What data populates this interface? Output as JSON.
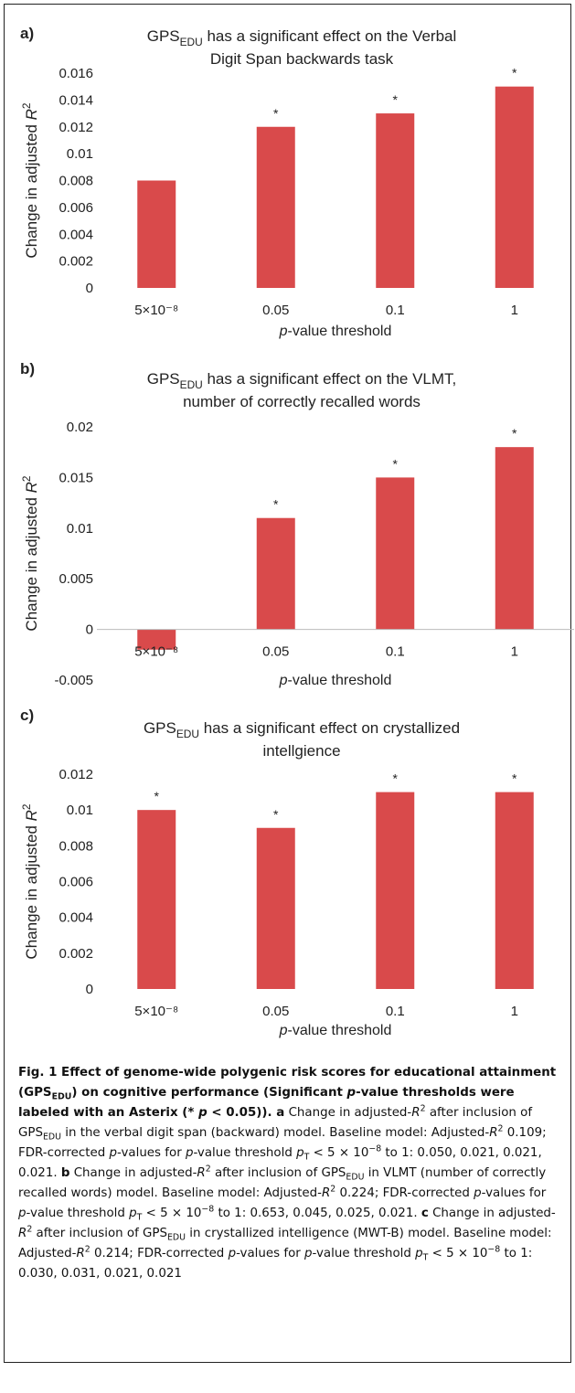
{
  "chart_data": [
    {
      "type": "bar",
      "panel": "a)",
      "title": [
        [
          {
            "text": "GPS"
          },
          {
            "text": "EDU",
            "style": "sub"
          },
          {
            "text": " has a significant effect on the Verbal"
          }
        ],
        [
          {
            "text": "Digit Span backwards task"
          }
        ]
      ],
      "ylabel": [
        {
          "text": "Change in adjusted "
        },
        {
          "text": "R",
          "style": "i"
        },
        {
          "text": "2",
          "style": "sup"
        }
      ],
      "xlabel": [
        {
          "text": "p",
          "style": "i"
        },
        {
          "text": "-value threshold"
        }
      ],
      "categories": [
        "5×10⁻⁸",
        "0.05",
        "0.1",
        "1"
      ],
      "values": [
        0.008,
        0.012,
        0.013,
        0.015
      ],
      "annotations": [
        null,
        "*",
        "*",
        "*"
      ],
      "color": "#d94a4b",
      "ylim": [
        0,
        0.016
      ],
      "yticks": [
        0,
        0.002,
        0.004,
        0.006,
        0.008,
        0.01,
        0.012,
        0.014,
        0.016
      ]
    },
    {
      "type": "bar",
      "panel": "b)",
      "title": [
        [
          {
            "text": "GPS"
          },
          {
            "text": "EDU",
            "style": "sub"
          },
          {
            "text": " has a significant effect on the VLMT,"
          }
        ],
        [
          {
            "text": "number of correctly recalled words"
          }
        ]
      ],
      "ylabel": [
        {
          "text": "Change in adjusted "
        },
        {
          "text": "R",
          "style": "i"
        },
        {
          "text": "2",
          "style": "sup"
        }
      ],
      "xlabel": [
        {
          "text": "p",
          "style": "i"
        },
        {
          "text": "-value threshold"
        }
      ],
      "categories": [
        "5×10⁻⁸",
        "0.05",
        "0.1",
        "1"
      ],
      "values": [
        -0.002,
        0.011,
        0.015,
        0.018
      ],
      "annotations": [
        null,
        "*",
        "*",
        "*"
      ],
      "color": "#d94a4b",
      "zero_line": true,
      "ylim": [
        -0.005,
        0.02
      ],
      "yticks": [
        -0.005,
        0,
        0.005,
        0.01,
        0.015,
        0.02
      ]
    },
    {
      "type": "bar",
      "panel": "c)",
      "title": [
        [
          {
            "text": "GPS"
          },
          {
            "text": "EDU",
            "style": "sub"
          },
          {
            "text": " has a significant effect on crystallized"
          }
        ],
        [
          {
            "text": "intellgience"
          }
        ]
      ],
      "ylabel": [
        {
          "text": "Change in adjusted "
        },
        {
          "text": "R",
          "style": "i"
        },
        {
          "text": "2",
          "style": "sup"
        }
      ],
      "xlabel": [
        {
          "text": "p",
          "style": "i"
        },
        {
          "text": "-value threshold"
        }
      ],
      "categories": [
        "5×10⁻⁸",
        "0.05",
        "0.1",
        "1"
      ],
      "values": [
        0.01,
        0.009,
        0.011,
        0.011
      ],
      "annotations": [
        "*",
        "*",
        "*",
        "*"
      ],
      "color": "#d94a4b",
      "ylim": [
        0,
        0.012
      ],
      "yticks": [
        0,
        0.002,
        0.004,
        0.006,
        0.008,
        0.01,
        0.012
      ]
    }
  ],
  "caption": [
    {
      "text": "Fig. 1 Effect of genome-wide polygenic risk scores for educational attainment (GPS",
      "style": "b"
    },
    {
      "text": "EDU",
      "style": "bsub"
    },
    {
      "text": ") on cognitive performance (Significant ",
      "style": "b"
    },
    {
      "text": "p",
      "style": "bi"
    },
    {
      "text": "-value thresholds were labeled with an Asterix (* ",
      "style": "b"
    },
    {
      "text": "p",
      "style": "bi"
    },
    {
      "text": " < 0.05)). ",
      "style": "b"
    },
    {
      "text": "a",
      "style": "b"
    },
    {
      "text": " Change in adjusted-"
    },
    {
      "text": "R",
      "style": "i"
    },
    {
      "text": "2",
      "style": "sup"
    },
    {
      "text": " after inclusion of GPS"
    },
    {
      "text": "EDU",
      "style": "sub"
    },
    {
      "text": " in the verbal digit span (backward) model. Baseline model: Adjusted-"
    },
    {
      "text": "R",
      "style": "i"
    },
    {
      "text": "2",
      "style": "sup"
    },
    {
      "text": " 0.109; FDR-corrected "
    },
    {
      "text": "p",
      "style": "i"
    },
    {
      "text": "-values for "
    },
    {
      "text": "p",
      "style": "i"
    },
    {
      "text": "-value threshold "
    },
    {
      "text": "p",
      "style": "i"
    },
    {
      "text": "T",
      "style": "sub"
    },
    {
      "text": " < 5 × 10"
    },
    {
      "text": "−8",
      "style": "sup"
    },
    {
      "text": " to 1: 0.050, 0.021, 0.021, 0.021. "
    },
    {
      "text": "b",
      "style": "b"
    },
    {
      "text": " Change in adjusted-"
    },
    {
      "text": "R",
      "style": "i"
    },
    {
      "text": "2",
      "style": "sup"
    },
    {
      "text": " after inclusion of GPS"
    },
    {
      "text": "EDU",
      "style": "sub"
    },
    {
      "text": " in VLMT (number of correctly recalled words) model. Baseline model: Adjusted-"
    },
    {
      "text": "R",
      "style": "i"
    },
    {
      "text": "2",
      "style": "sup"
    },
    {
      "text": " 0.224; FDR-corrected "
    },
    {
      "text": "p",
      "style": "i"
    },
    {
      "text": "-values for "
    },
    {
      "text": "p",
      "style": "i"
    },
    {
      "text": "-value threshold "
    },
    {
      "text": "p",
      "style": "i"
    },
    {
      "text": "T",
      "style": "sub"
    },
    {
      "text": " < 5 × 10"
    },
    {
      "text": "−8",
      "style": "sup"
    },
    {
      "text": " to 1: 0.653, 0.045, 0.025, 0.021. "
    },
    {
      "text": "c",
      "style": "b"
    },
    {
      "text": " Change in adjusted-"
    },
    {
      "text": "R",
      "style": "i"
    },
    {
      "text": "2",
      "style": "sup"
    },
    {
      "text": " after inclusion of GPS"
    },
    {
      "text": "EDU",
      "style": "sub"
    },
    {
      "text": " in crystallized intelligence (MWT-B) model. Baseline model: Adjusted-"
    },
    {
      "text": "R",
      "style": "i"
    },
    {
      "text": "2",
      "style": "sup"
    },
    {
      "text": " 0.214; FDR-corrected "
    },
    {
      "text": "p",
      "style": "i"
    },
    {
      "text": "-values for "
    },
    {
      "text": "p",
      "style": "i"
    },
    {
      "text": "-value threshold "
    },
    {
      "text": "p",
      "style": "i"
    },
    {
      "text": "T",
      "style": "sub"
    },
    {
      "text": " < 5 × 10"
    },
    {
      "text": "−8",
      "style": "sup"
    },
    {
      "text": " to 1: 0.030, 0.031, 0.021, 0.021"
    }
  ]
}
